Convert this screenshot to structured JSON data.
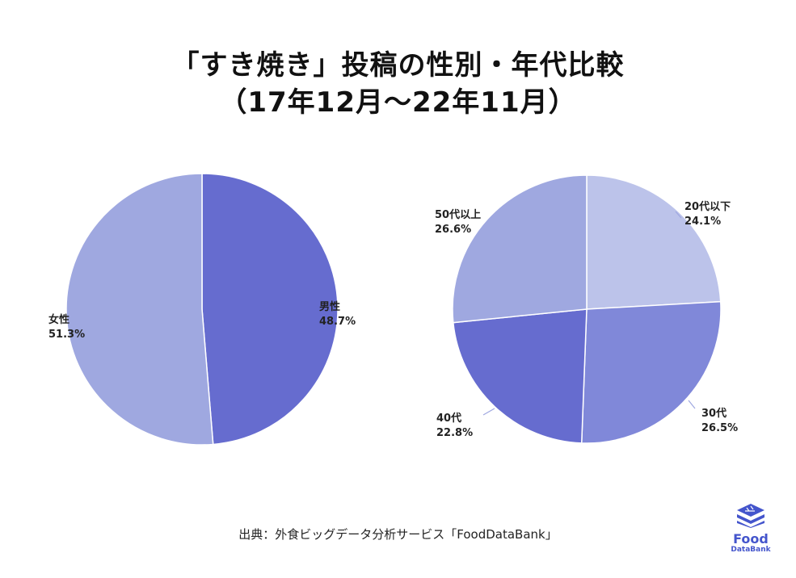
{
  "title": {
    "line1": "「すき焼き」投稿の性別・年代比較",
    "line2": "（17年12月〜22年11月）"
  },
  "source": "出典：外食ビッグデータ分析サービス「FoodDataBank」",
  "logo": {
    "top": "Food",
    "bottom": "DataBank"
  },
  "colors": {
    "dark": "#666ccf",
    "medium": "#8088d9",
    "light": "#9fa8e0",
    "lightest": "#bcc3ea"
  },
  "chart_data": [
    {
      "type": "pie",
      "title": "",
      "slices": [
        {
          "label": "男性",
          "value": 48.7,
          "value_text": "48.7%",
          "color": "#666ccf"
        },
        {
          "label": "女性",
          "value": 51.3,
          "value_text": "51.3%",
          "color": "#9fa8e0"
        }
      ]
    },
    {
      "type": "pie",
      "title": "",
      "slices": [
        {
          "label": "20代以下",
          "value": 24.1,
          "value_text": "24.1%",
          "color": "#bcc3ea"
        },
        {
          "label": "30代",
          "value": 26.5,
          "value_text": "26.5%",
          "color": "#8088d9"
        },
        {
          "label": "40代",
          "value": 22.8,
          "value_text": "22.8%",
          "color": "#666ccf"
        },
        {
          "label": "50代以上",
          "value": 26.6,
          "value_text": "26.6%",
          "color": "#9fa8e0"
        }
      ]
    }
  ]
}
